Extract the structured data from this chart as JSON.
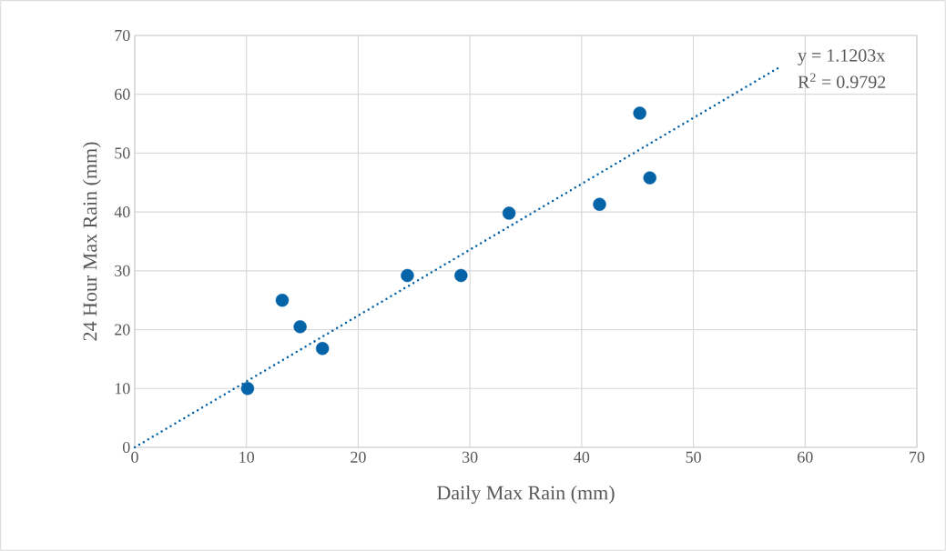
{
  "chart_data": {
    "type": "scatter",
    "xlabel": "Daily Max Rain (mm)",
    "ylabel": "24 Hour Max Rain (mm)",
    "x": [
      10.1,
      13.2,
      14.8,
      16.8,
      24.4,
      29.2,
      33.5,
      41.6,
      45.2,
      46.1
    ],
    "series": [
      {
        "color": "#0563a8",
        "marker": "circle",
        "values": [
          10.0,
          25.0,
          20.5,
          16.8,
          29.2,
          29.2,
          39.8,
          41.3,
          56.8,
          45.8
        ]
      },
      {
        "type": "line",
        "color": "#0563a8",
        "marker": "none",
        "line_style": "dotted",
        "x": [
          0,
          57.7
        ],
        "values": [
          0,
          64.6
        ]
      }
    ],
    "annotations": [
      "y = 1.1203x",
      "R$^{2}$ = 0.9792"
    ],
    "xlim": [
      0,
      70
    ],
    "ylim": [
      0,
      70
    ],
    "xticks": [
      0,
      10,
      20,
      30,
      40,
      50,
      60,
      70
    ],
    "yticks": [
      0,
      10,
      20,
      30,
      40,
      50,
      60,
      70
    ],
    "grid": true
  }
}
